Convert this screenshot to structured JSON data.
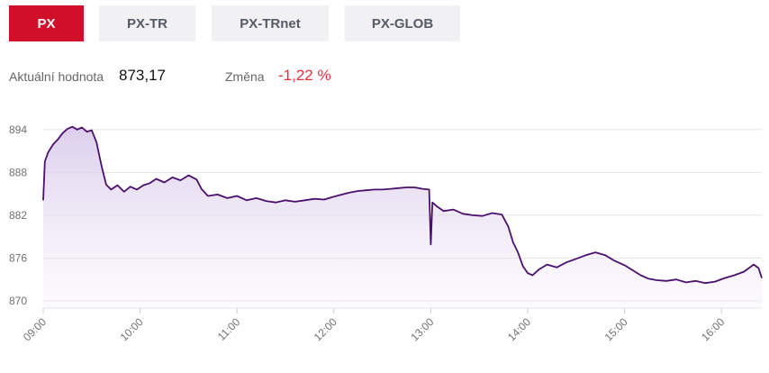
{
  "tabs": [
    {
      "label": "PX",
      "active": true
    },
    {
      "label": "PX-TR",
      "active": false
    },
    {
      "label": "PX-TRnet",
      "active": false
    },
    {
      "label": "PX-GLOB",
      "active": false
    }
  ],
  "stats": {
    "value_label": "Aktuální hodnota",
    "value": "873,17",
    "change_label": "Změna",
    "change": "-1,22 %"
  },
  "colors": {
    "accent": "#d20f28",
    "line": "#4b0f6e",
    "negative": "#e0323c"
  },
  "chart_data": {
    "type": "area",
    "title": "",
    "xlabel": "",
    "ylabel": "",
    "ylim": [
      870,
      896
    ],
    "xlim": [
      "09:00",
      "16:25"
    ],
    "y_ticks": [
      "894",
      "888",
      "882",
      "876",
      "870"
    ],
    "x_ticks": [
      "09:00",
      "10:00",
      "11:00",
      "12:00",
      "13:00",
      "14:00",
      "15:00",
      "16:00"
    ],
    "grid": true,
    "series": [
      {
        "values": [
          [
            "09:00",
            884.1
          ],
          [
            "09:01",
            889.5
          ],
          [
            "09:03",
            890.8
          ],
          [
            "09:06",
            891.9
          ],
          [
            "09:09",
            892.6
          ],
          [
            "09:12",
            893.5
          ],
          [
            "09:15",
            894.1
          ],
          [
            "09:18",
            894.4
          ],
          [
            "09:21",
            894.0
          ],
          [
            "09:24",
            894.3
          ],
          [
            "09:27",
            893.7
          ],
          [
            "09:30",
            893.9
          ],
          [
            "09:33",
            892.2
          ],
          [
            "09:36",
            889.0
          ],
          [
            "09:39",
            886.3
          ],
          [
            "09:42",
            885.6
          ],
          [
            "09:46",
            886.2
          ],
          [
            "09:50",
            885.3
          ],
          [
            "09:54",
            886.0
          ],
          [
            "09:58",
            885.6
          ],
          [
            "10:02",
            886.2
          ],
          [
            "10:06",
            886.5
          ],
          [
            "10:10",
            887.1
          ],
          [
            "10:15",
            886.6
          ],
          [
            "10:20",
            887.3
          ],
          [
            "10:25",
            886.9
          ],
          [
            "10:30",
            887.6
          ],
          [
            "10:35",
            887.0
          ],
          [
            "10:38",
            885.7
          ],
          [
            "10:42",
            884.7
          ],
          [
            "10:48",
            884.9
          ],
          [
            "10:54",
            884.4
          ],
          [
            "11:00",
            884.7
          ],
          [
            "11:06",
            884.1
          ],
          [
            "11:12",
            884.4
          ],
          [
            "11:18",
            884.0
          ],
          [
            "11:24",
            883.8
          ],
          [
            "11:30",
            884.1
          ],
          [
            "11:36",
            883.9
          ],
          [
            "11:42",
            884.1
          ],
          [
            "11:48",
            884.3
          ],
          [
            "11:54",
            884.2
          ],
          [
            "12:00",
            884.6
          ],
          [
            "12:05",
            884.9
          ],
          [
            "12:10",
            885.2
          ],
          [
            "12:15",
            885.4
          ],
          [
            "12:20",
            885.5
          ],
          [
            "12:25",
            885.6
          ],
          [
            "12:30",
            885.6
          ],
          [
            "12:35",
            885.7
          ],
          [
            "12:40",
            885.8
          ],
          [
            "12:45",
            885.9
          ],
          [
            "12:50",
            885.9
          ],
          [
            "12:55",
            885.7
          ],
          [
            "12:59",
            885.6
          ],
          [
            "13:00",
            877.9
          ],
          [
            "13:01",
            883.8
          ],
          [
            "13:04",
            883.2
          ],
          [
            "13:08",
            882.6
          ],
          [
            "13:14",
            882.8
          ],
          [
            "13:20",
            882.2
          ],
          [
            "13:26",
            882.0
          ],
          [
            "13:32",
            881.9
          ],
          [
            "13:38",
            882.3
          ],
          [
            "13:44",
            882.1
          ],
          [
            "13:48",
            880.4
          ],
          [
            "13:51",
            878.2
          ],
          [
            "13:54",
            876.8
          ],
          [
            "13:57",
            874.9
          ],
          [
            "14:00",
            873.9
          ],
          [
            "14:03",
            873.6
          ],
          [
            "14:07",
            874.4
          ],
          [
            "14:12",
            875.1
          ],
          [
            "14:18",
            874.7
          ],
          [
            "14:24",
            875.4
          ],
          [
            "14:30",
            875.9
          ],
          [
            "14:36",
            876.4
          ],
          [
            "14:42",
            876.8
          ],
          [
            "14:48",
            876.4
          ],
          [
            "14:54",
            875.6
          ],
          [
            "15:00",
            875.0
          ],
          [
            "15:05",
            874.3
          ],
          [
            "15:10",
            873.6
          ],
          [
            "15:15",
            873.1
          ],
          [
            "15:20",
            872.9
          ],
          [
            "15:26",
            872.8
          ],
          [
            "15:32",
            873.0
          ],
          [
            "15:38",
            872.6
          ],
          [
            "15:44",
            872.8
          ],
          [
            "15:50",
            872.5
          ],
          [
            "15:56",
            872.7
          ],
          [
            "16:02",
            873.2
          ],
          [
            "16:08",
            873.6
          ],
          [
            "16:14",
            874.1
          ],
          [
            "16:20",
            875.1
          ],
          [
            "16:23",
            874.6
          ],
          [
            "16:25",
            873.2
          ]
        ]
      }
    ]
  }
}
